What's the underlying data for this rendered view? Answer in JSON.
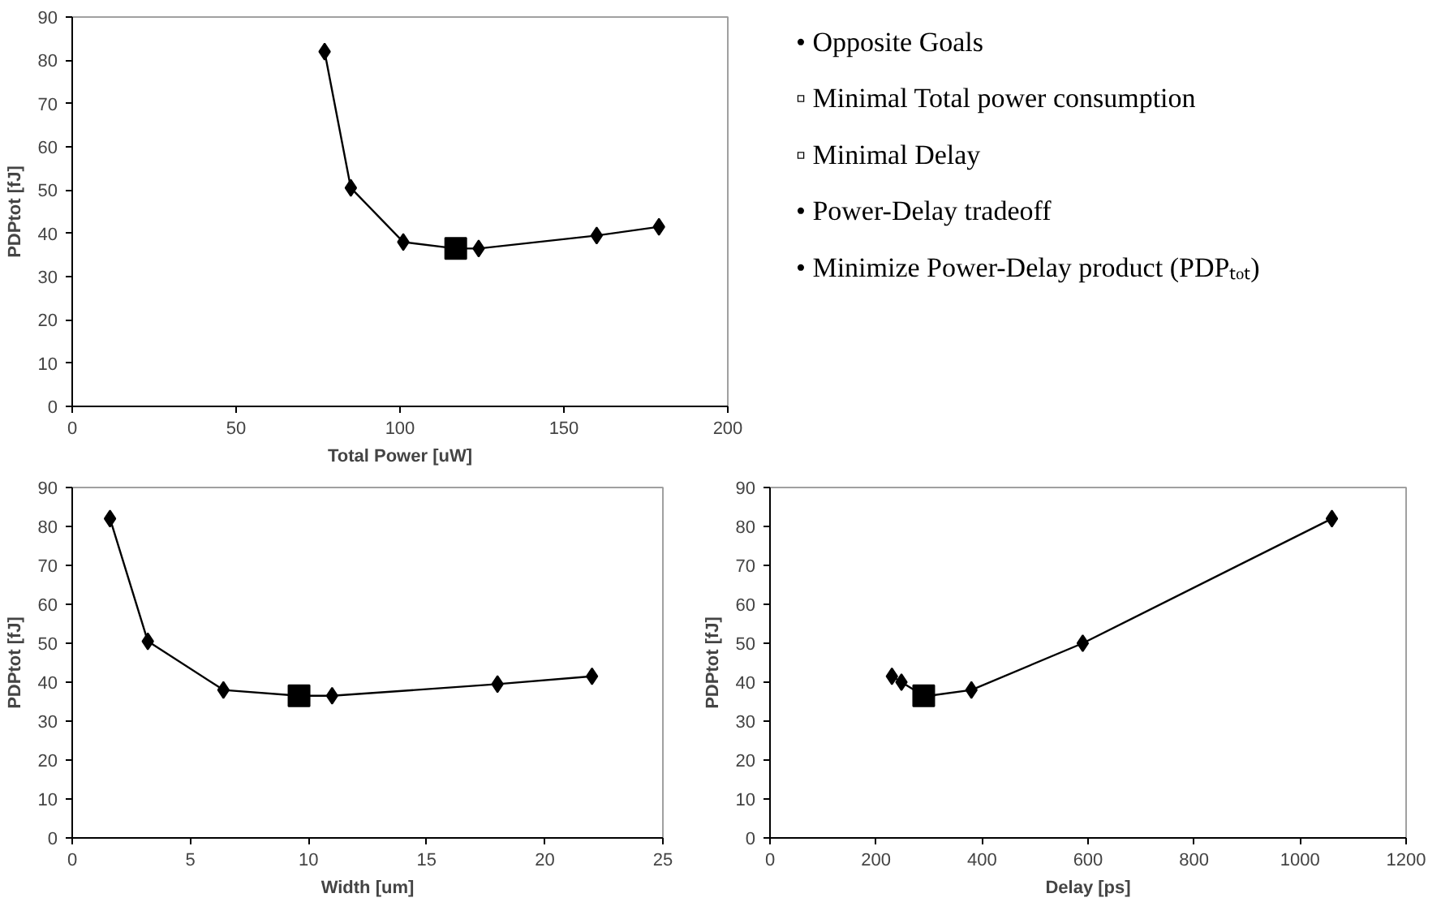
{
  "chart_data": [
    {
      "type": "line",
      "xlabel": "Total Power [uW]",
      "ylabel": "PDPtot [fJ]",
      "xlim": [
        0,
        200
      ],
      "xticks": [
        0,
        50,
        100,
        150,
        200
      ],
      "ylim": [
        0,
        90
      ],
      "yticks": [
        0,
        10,
        20,
        30,
        40,
        50,
        60,
        70,
        80,
        90
      ],
      "grid": false,
      "series": [
        {
          "type": "line",
          "color": "#000000",
          "marker": "diamond",
          "x": [
            77,
            85,
            101,
            117,
            124,
            160,
            179
          ],
          "values": [
            82,
            50.5,
            38,
            36.5,
            36.5,
            39.5,
            41.5
          ]
        },
        {
          "type": "scatter",
          "color": "#000000",
          "marker": "square",
          "x": [
            117
          ],
          "values": [
            36.5
          ]
        }
      ]
    },
    {
      "type": "other",
      "annotations": [
        "• Opposite Goals",
        "▫ Minimal Total power consumption",
        "▫ Minimal Delay",
        "• Power-Delay tradeoff",
        "• Minimize Power-Delay product (PDPₜₒₜ)"
      ]
    },
    {
      "type": "line",
      "xlabel": "Width [um]",
      "ylabel": "PDPtot [fJ]",
      "xlim": [
        0,
        25
      ],
      "xticks": [
        0,
        5,
        10,
        15,
        20,
        25
      ],
      "ylim": [
        0,
        90
      ],
      "yticks": [
        0,
        10,
        20,
        30,
        40,
        50,
        60,
        70,
        80,
        90
      ],
      "grid": false,
      "series": [
        {
          "type": "line",
          "color": "#000000",
          "marker": "diamond",
          "x": [
            1.6,
            3.2,
            6.4,
            9.6,
            11,
            18,
            22
          ],
          "values": [
            82,
            50.5,
            38,
            36.5,
            36.5,
            39.5,
            41.5
          ]
        },
        {
          "type": "scatter",
          "color": "#000000",
          "marker": "square",
          "x": [
            9.6
          ],
          "values": [
            36.5
          ]
        }
      ]
    },
    {
      "type": "line",
      "xlabel": "Delay [ps]",
      "ylabel": "PDPtot [fJ]",
      "xlim": [
        0,
        1200
      ],
      "xticks": [
        0,
        200,
        400,
        600,
        800,
        1000,
        1200
      ],
      "ylim": [
        0,
        90
      ],
      "yticks": [
        0,
        10,
        20,
        30,
        40,
        50,
        60,
        70,
        80,
        90
      ],
      "grid": false,
      "series": [
        {
          "type": "line",
          "color": "#000000",
          "marker": "diamond",
          "x": [
            230,
            248,
            290,
            300,
            380,
            590,
            1060
          ],
          "values": [
            41.5,
            40,
            36.5,
            36.5,
            38,
            50,
            82
          ]
        },
        {
          "type": "scatter",
          "color": "#000000",
          "marker": "square",
          "x": [
            290
          ],
          "values": [
            36.5
          ]
        }
      ]
    }
  ]
}
